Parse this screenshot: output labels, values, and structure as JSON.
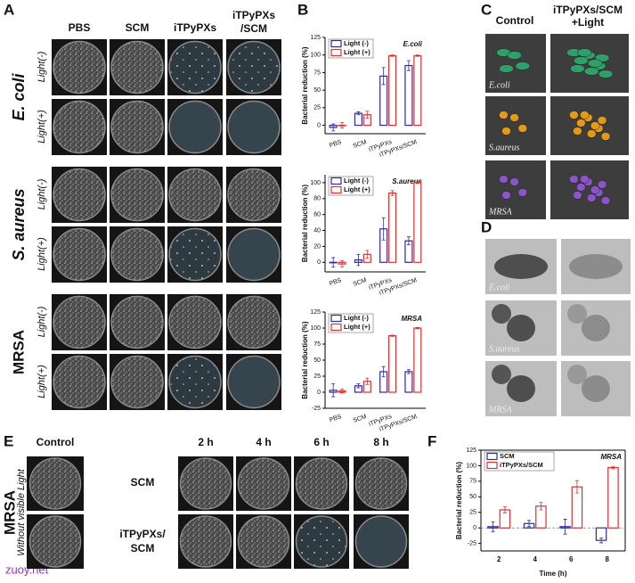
{
  "panel_labels": [
    "A",
    "B",
    "C",
    "D",
    "E",
    "F"
  ],
  "panel_a": {
    "columns": [
      [
        "PBS"
      ],
      [
        "SCM"
      ],
      [
        "iTPyPXs"
      ],
      [
        "iTPyPXs",
        "/SCM"
      ]
    ],
    "species": [
      "E. coli",
      "S. aureus",
      "MRSA"
    ],
    "conditions": [
      "Light(-)",
      "Light(+)"
    ]
  },
  "panel_c": {
    "columns": [
      [
        "Control"
      ],
      [
        "iTPyPXs/SCM",
        "+Light"
      ]
    ],
    "labels": [
      "E.coli",
      "S.aureus",
      "MRSA"
    ]
  },
  "panel_d": {
    "labels": [
      "E.coli",
      "S.aureus",
      "MRSA"
    ]
  },
  "panel_e": {
    "control": "Control",
    "times": [
      "2 h",
      "4 h",
      "6 h",
      "8 h"
    ],
    "treatments": [
      [
        "SCM"
      ],
      [
        "iTPyPXs/",
        "SCM"
      ]
    ],
    "species": "MRSA",
    "condition": "Without visible Light"
  },
  "watermark": "zuoy.net",
  "chart_data": [
    {
      "type": "bar",
      "title": "E.coli",
      "y_label": "Bacterial reduction (%)",
      "categories": [
        "PBS",
        "SCM",
        "iTPyPXs",
        "iTPyPXs/SCM"
      ],
      "ylim": [
        -12,
        125
      ],
      "yticks": [
        0,
        25,
        50,
        75,
        100,
        125
      ],
      "legend": "upper left",
      "series": [
        {
          "name": "Light (-)",
          "color": "#2b2b9a",
          "values": [
            -3,
            17,
            70,
            85
          ],
          "errors": [
            5,
            2,
            12,
            7
          ]
        },
        {
          "name": "Light (+)",
          "color": "#e03030",
          "values": [
            0,
            15,
            99,
            99
          ],
          "errors": [
            4,
            5,
            1,
            1
          ]
        }
      ]
    },
    {
      "type": "bar",
      "title": "S.aureus",
      "y_label": "Bacterial reduction (%)",
      "categories": [
        "PBS",
        "SCM",
        "iTPyPXs",
        "iTPyPXs/SCM"
      ],
      "ylim": [
        -12,
        110
      ],
      "yticks": [
        0,
        20,
        40,
        60,
        80,
        100
      ],
      "legend": "upper left",
      "series": [
        {
          "name": "Light (-)",
          "color": "#2b2b9a",
          "values": [
            0,
            3,
            42,
            27
          ],
          "errors": [
            6,
            7,
            14,
            5
          ]
        },
        {
          "name": "Light (+)",
          "color": "#e03030",
          "values": [
            -2,
            10,
            87,
            100
          ],
          "errors": [
            4,
            5,
            3,
            1
          ]
        }
      ]
    },
    {
      "type": "bar",
      "title": "MRSA",
      "y_label": "Bacterial reduction (%)",
      "categories": [
        "PBS",
        "SCM",
        "iTPyPXs",
        "iTPyPXs/SCM"
      ],
      "ylim": [
        -25,
        125
      ],
      "yticks": [
        -25,
        0,
        25,
        50,
        75,
        100,
        125
      ],
      "legend": "upper left",
      "series": [
        {
          "name": "Light (-)",
          "color": "#2b2b9a",
          "values": [
            3,
            10,
            32,
            32
          ],
          "errors": [
            10,
            3,
            8,
            3
          ]
        },
        {
          "name": "Light (+)",
          "color": "#e03030",
          "values": [
            2,
            17,
            88,
            100
          ],
          "errors": [
            3,
            5,
            1,
            1
          ]
        }
      ]
    },
    {
      "type": "bar",
      "title": "MRSA",
      "y_label": "Bacterial reduction (%)",
      "x_label": "Time (h)",
      "categories": [
        "2",
        "4",
        "6",
        "8"
      ],
      "ylim": [
        -37,
        125
      ],
      "yticks": [
        -25,
        0,
        25,
        50,
        75,
        100,
        125
      ],
      "legend": "upper left",
      "zero_line": true,
      "series": [
        {
          "name": "SCM",
          "color": "#2b2b9a",
          "values": [
            2,
            7,
            2,
            -20
          ],
          "errors": [
            8,
            5,
            12,
            4
          ]
        },
        {
          "name": "iTPyPXs/SCM",
          "color": "#e03030",
          "values": [
            29,
            35,
            66,
            97
          ],
          "errors": [
            5,
            6,
            10,
            2
          ]
        }
      ]
    }
  ]
}
